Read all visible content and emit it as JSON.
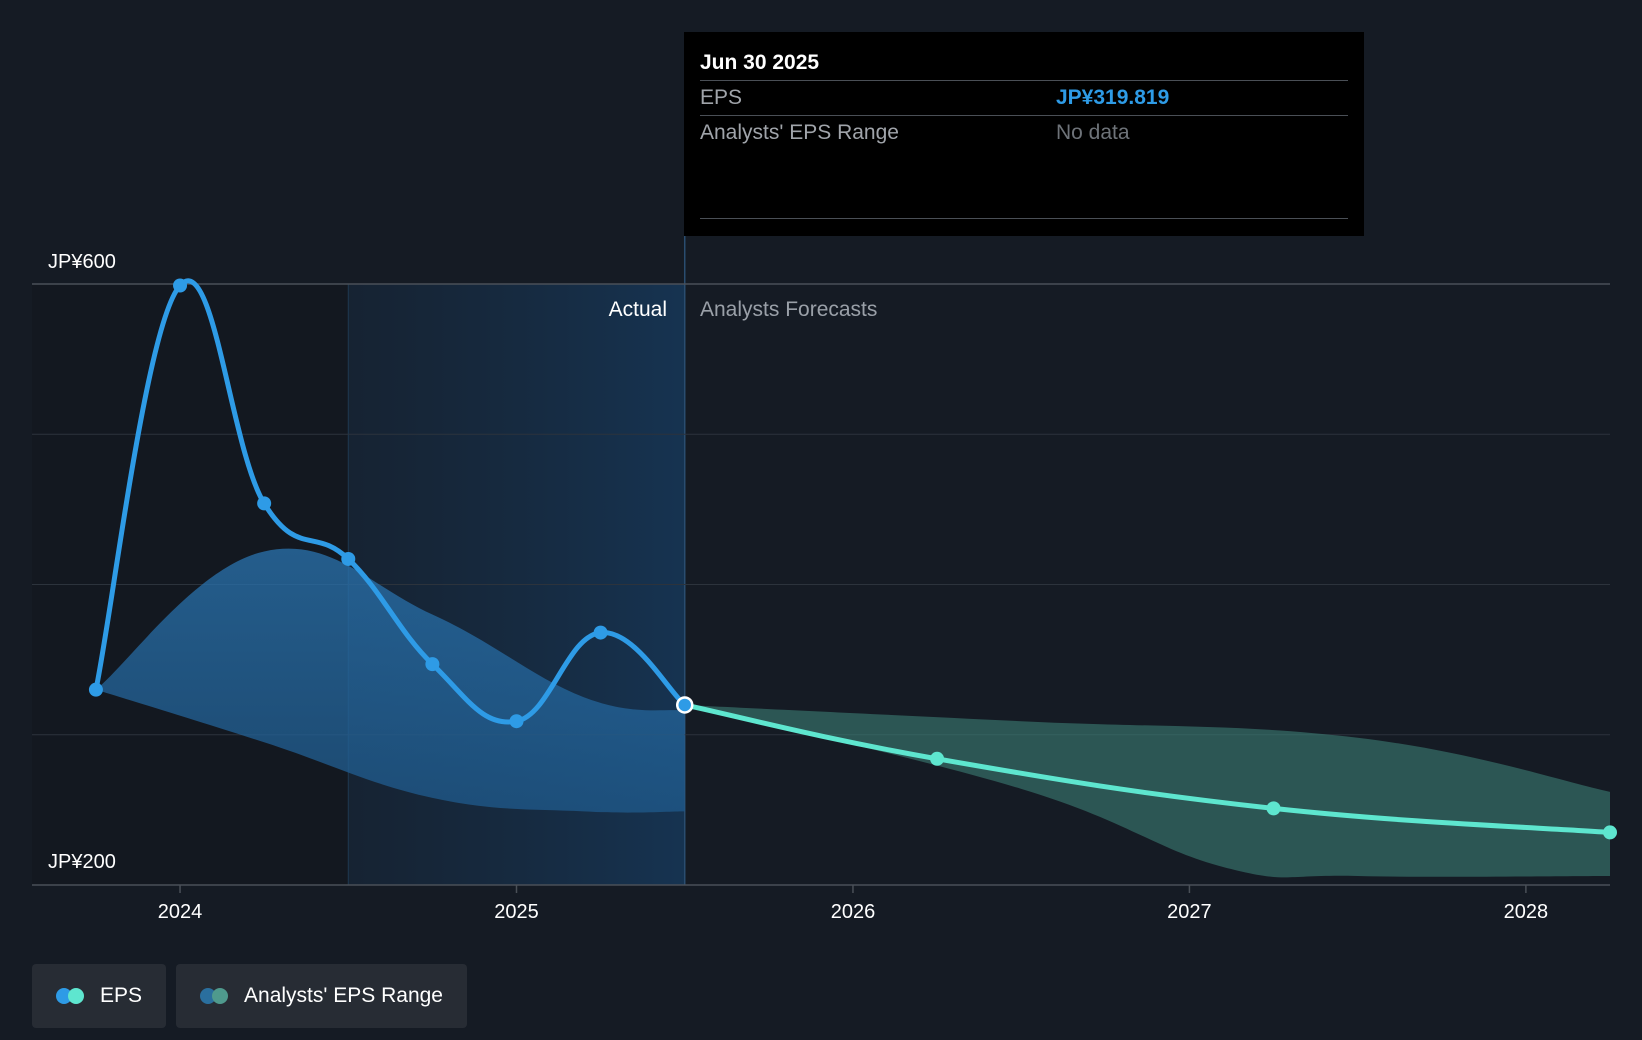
{
  "chart_data": {
    "type": "line",
    "title": "",
    "y_axis": {
      "min": 200,
      "max": 600,
      "top_label": "JP¥600",
      "bottom_label": "JP¥200",
      "gridlines": [
        600,
        500,
        400,
        300,
        200
      ]
    },
    "x_axis": {
      "ticks": [
        {
          "x": 2024,
          "label": "2024"
        },
        {
          "x": 2025,
          "label": "2025"
        },
        {
          "x": 2026,
          "label": "2026"
        },
        {
          "x": 2027,
          "label": "2027"
        },
        {
          "x": 2028,
          "label": "2028"
        }
      ],
      "min": 2023.56,
      "max": 2028.25
    },
    "past_shade_start": 2024.5,
    "divider_x": 2025.5,
    "section_labels": {
      "actual": "Actual",
      "forecast": "Analysts Forecasts"
    },
    "series": [
      {
        "name": "EPS",
        "color": "#2e9be6",
        "points": [
          {
            "x": 2023.75,
            "y": 330
          },
          {
            "x": 2024.0,
            "y": 599
          },
          {
            "x": 2024.25,
            "y": 454
          },
          {
            "x": 2024.5,
            "y": 417
          },
          {
            "x": 2024.75,
            "y": 347
          },
          {
            "x": 2025.0,
            "y": 309
          },
          {
            "x": 2025.25,
            "y": 368
          },
          {
            "x": 2025.5,
            "y": 319.819
          }
        ]
      },
      {
        "name": "EPS forecast",
        "color": "#5ee6cf",
        "points": [
          {
            "x": 2025.5,
            "y": 319.819
          },
          {
            "x": 2026.25,
            "y": 284
          },
          {
            "x": 2027.25,
            "y": 251
          },
          {
            "x": 2028.25,
            "y": 235
          }
        ]
      }
    ],
    "ranges": [
      {
        "name": "Analysts' EPS Range (past)",
        "color": "#2e86c8",
        "upper": [
          {
            "x": 2023.75,
            "y": 330
          },
          {
            "x": 2024.25,
            "y": 422
          },
          {
            "x": 2024.75,
            "y": 380
          },
          {
            "x": 2025.2,
            "y": 325
          },
          {
            "x": 2025.5,
            "y": 316
          }
        ],
        "lower": [
          {
            "x": 2023.75,
            "y": 330
          },
          {
            "x": 2024.25,
            "y": 295
          },
          {
            "x": 2024.75,
            "y": 258
          },
          {
            "x": 2025.2,
            "y": 249
          },
          {
            "x": 2025.5,
            "y": 249
          }
        ]
      },
      {
        "name": "Analysts' EPS Range (forecast)",
        "color": "#3c7f74",
        "upper": [
          {
            "x": 2025.5,
            "y": 319.819
          },
          {
            "x": 2026.5,
            "y": 309
          },
          {
            "x": 2027.5,
            "y": 298
          },
          {
            "x": 2028.25,
            "y": 262
          }
        ],
        "lower": [
          {
            "x": 2025.5,
            "y": 319.819
          },
          {
            "x": 2026.5,
            "y": 264
          },
          {
            "x": 2027.1,
            "y": 212
          },
          {
            "x": 2027.5,
            "y": 206
          },
          {
            "x": 2028.25,
            "y": 206
          }
        ]
      }
    ],
    "highlight": {
      "x": 2025.5,
      "y": 319.819
    }
  },
  "tooltip": {
    "date": "Jun 30 2025",
    "rows": [
      {
        "key": "EPS",
        "value": "JP¥319.819"
      },
      {
        "key": "Analysts' EPS Range",
        "value": "No data"
      }
    ]
  },
  "legend": {
    "items": [
      {
        "label": "EPS",
        "colors": [
          "#2e9be6",
          "#5ee6cf"
        ]
      },
      {
        "label": "Analysts' EPS Range",
        "colors": [
          "#2a6f9e",
          "#4f9a8d"
        ]
      }
    ]
  }
}
